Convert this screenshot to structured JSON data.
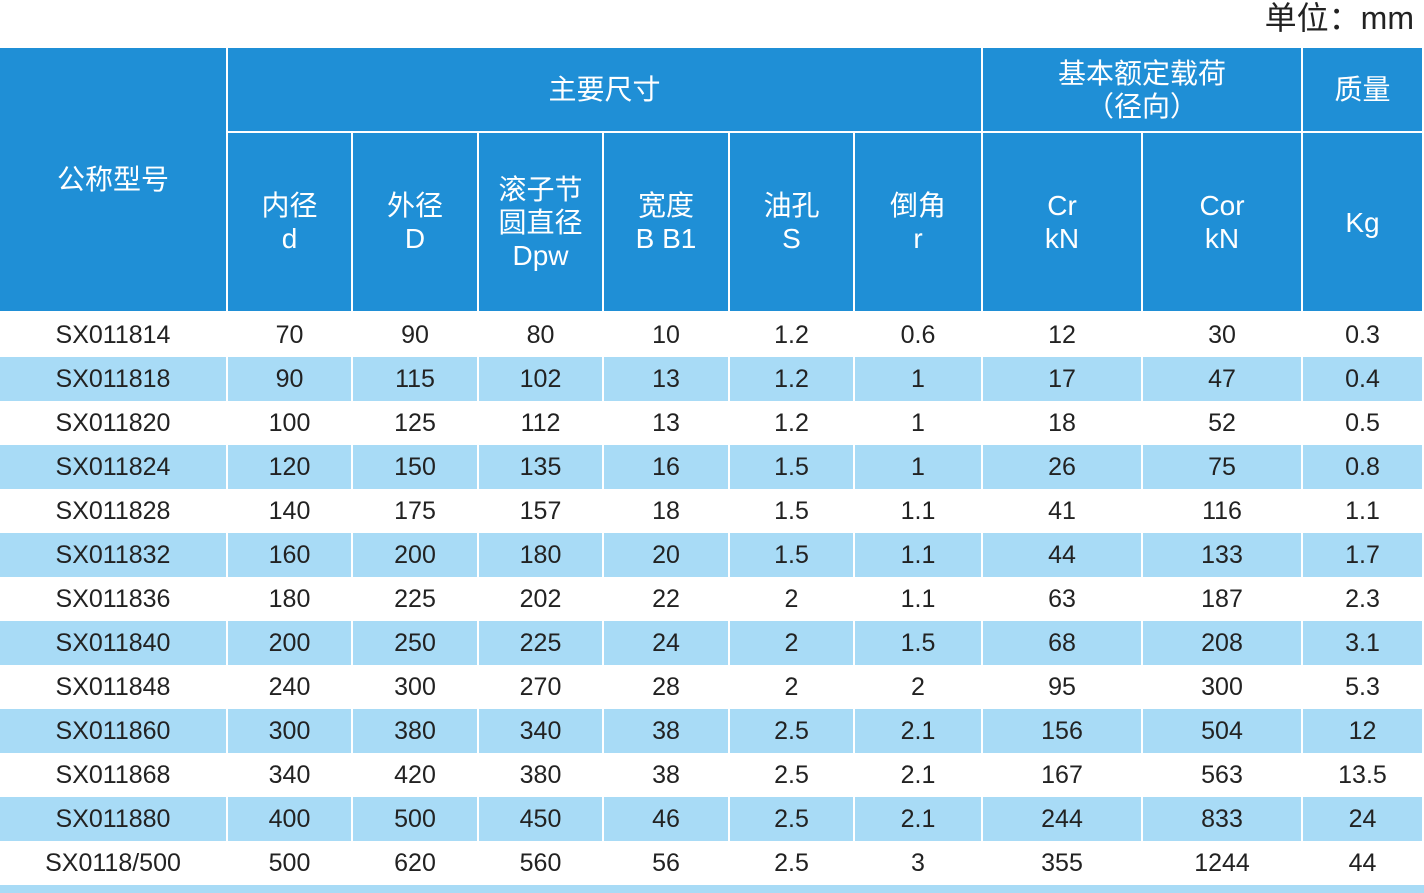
{
  "unit": "单位：mm",
  "header": {
    "model": "公称型号",
    "main": "主要尺寸",
    "load": [
      "基本额定载荷",
      "（径向）"
    ],
    "mass": "质量",
    "columns": [
      [
        "内径",
        "d"
      ],
      [
        "外径",
        "D"
      ],
      [
        "滚子节",
        "圆直径",
        "Dpw"
      ],
      [
        "宽度",
        "B B1"
      ],
      [
        "油孔",
        "S"
      ],
      [
        "倒角",
        "r"
      ],
      [
        "Cr",
        "kN"
      ],
      [
        "Cor",
        "kN"
      ],
      [
        "Kg"
      ]
    ]
  },
  "table": {
    "rows": [
      [
        "SX011814",
        "70",
        "90",
        "80",
        "10",
        "1.2",
        "0.6",
        "12",
        "30",
        "0.3"
      ],
      [
        "SX011818",
        "90",
        "115",
        "102",
        "13",
        "1.2",
        "1",
        "17",
        "47",
        "0.4"
      ],
      [
        "SX011820",
        "100",
        "125",
        "112",
        "13",
        "1.2",
        "1",
        "18",
        "52",
        "0.5"
      ],
      [
        "SX011824",
        "120",
        "150",
        "135",
        "16",
        "1.5",
        "1",
        "26",
        "75",
        "0.8"
      ],
      [
        "SX011828",
        "140",
        "175",
        "157",
        "18",
        "1.5",
        "1.1",
        "41",
        "116",
        "1.1"
      ],
      [
        "SX011832",
        "160",
        "200",
        "180",
        "20",
        "1.5",
        "1.1",
        "44",
        "133",
        "1.7"
      ],
      [
        "SX011836",
        "180",
        "225",
        "202",
        "22",
        "2",
        "1.1",
        "63",
        "187",
        "2.3"
      ],
      [
        "SX011840",
        "200",
        "250",
        "225",
        "24",
        "2",
        "1.5",
        "68",
        "208",
        "3.1"
      ],
      [
        "SX011848",
        "240",
        "300",
        "270",
        "28",
        "2",
        "2",
        "95",
        "300",
        "5.3"
      ],
      [
        "SX011860",
        "300",
        "380",
        "340",
        "38",
        "2.5",
        "2.1",
        "156",
        "504",
        "12"
      ],
      [
        "SX011868",
        "340",
        "420",
        "380",
        "38",
        "2.5",
        "2.1",
        "167",
        "563",
        "13.5"
      ],
      [
        "SX011880",
        "400",
        "500",
        "450",
        "46",
        "2.5",
        "2.1",
        "244",
        "833",
        "24"
      ],
      [
        "SX0118/500",
        "500",
        "620",
        "560",
        "56",
        "2.5",
        "3",
        "355",
        "1244",
        "44"
      ]
    ]
  }
}
